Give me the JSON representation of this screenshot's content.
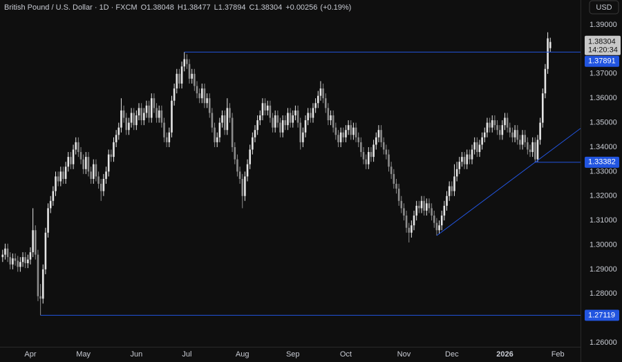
{
  "chart_data": {
    "type": "candlestick",
    "symbol": "British Pound / U.S. Dollar · 1D · FXCM",
    "ohlc_labels": [
      "O",
      "H",
      "L",
      "C"
    ],
    "change": {
      "value": 0.00256,
      "label": "+0.00256"
    },
    "change_percent": {
      "value": 0.19,
      "label": "(+0.19%)"
    },
    "countdown": "14:20:34",
    "currency": "USD",
    "up_color": "#e6e6e6",
    "down_color": "#8c8c8c",
    "line_color": "#2255e0",
    "grid": false,
    "ylim": [
      1.2583,
      1.4002
    ],
    "yticks": [
      {
        "value": 1.26,
        "label": "1.26000"
      },
      {
        "value": 1.27,
        "label": "1.27000"
      },
      {
        "value": 1.28,
        "label": "1.28000"
      },
      {
        "value": 1.29,
        "label": "1.29000"
      },
      {
        "value": 1.3,
        "label": "1.30000"
      },
      {
        "value": 1.31,
        "label": "1.31000"
      },
      {
        "value": 1.32,
        "label": "1.32000"
      },
      {
        "value": 1.33,
        "label": "1.33000"
      },
      {
        "value": 1.34,
        "label": "1.34000"
      },
      {
        "value": 1.35,
        "label": "1.35000"
      },
      {
        "value": 1.36,
        "label": "1.36000"
      },
      {
        "value": 1.37,
        "label": "1.37000"
      },
      {
        "value": 1.38,
        "label": "1.38000"
      },
      {
        "value": 1.39,
        "label": "1.39000"
      }
    ],
    "levels": [
      1.37891,
      1.33382,
      1.27119
    ],
    "trendline": [
      1.3038,
      1.33382
    ],
    "categories": [
      null,
      null,
      null,
      null,
      null,
      null,
      null,
      null,
      null,
      null,
      null,
      "Apr",
      null,
      null,
      null,
      null,
      null,
      null,
      null,
      null,
      null,
      null,
      null,
      null,
      null,
      null,
      null,
      null,
      null,
      null,
      null,
      null,
      "May",
      null,
      null,
      null,
      null,
      null,
      null,
      null,
      null,
      null,
      null,
      null,
      null,
      null,
      null,
      null,
      null,
      null,
      null,
      null,
      null,
      "Jun",
      null,
      null,
      null,
      null,
      null,
      null,
      null,
      null,
      null,
      null,
      null,
      null,
      null,
      null,
      null,
      null,
      null,
      null,
      null,
      "Jul",
      null,
      null,
      null,
      null,
      null,
      null,
      null,
      null,
      null,
      null,
      null,
      null,
      null,
      null,
      null,
      null,
      null,
      null,
      null,
      null,
      null,
      "Aug",
      null,
      null,
      null,
      null,
      null,
      null,
      null,
      null,
      null,
      null,
      null,
      null,
      null,
      null,
      null,
      null,
      null,
      null,
      null,
      "Sep",
      null,
      null,
      null,
      null,
      null,
      null,
      null,
      null,
      null,
      null,
      null,
      null,
      null,
      null,
      null,
      null,
      null,
      null,
      null,
      null,
      "Oct",
      null,
      null,
      null,
      null,
      null,
      null,
      null,
      null,
      null,
      null,
      null,
      null,
      null,
      null,
      null,
      null,
      null,
      null,
      null,
      null,
      null,
      null,
      "Nov",
      null,
      null,
      null,
      null,
      null,
      null,
      null,
      null,
      null,
      null,
      null,
      null,
      null,
      null,
      null,
      null,
      null,
      null,
      "Dec",
      null,
      null,
      null,
      null,
      null,
      null,
      null,
      null,
      null,
      null,
      null,
      null,
      null,
      null,
      null,
      null,
      null,
      null,
      null,
      null,
      "2026",
      null,
      null,
      null,
      null,
      null,
      null,
      null,
      null,
      null,
      null,
      null,
      null,
      null,
      null,
      null,
      null,
      null,
      null,
      null,
      null,
      "Feb"
    ],
    "open": [
      1.295,
      1.296,
      1.2985,
      1.295,
      1.292,
      1.2945,
      1.2935,
      1.291,
      1.293,
      1.295,
      1.2925,
      1.294,
      1.297,
      1.306,
      1.296,
      1.279,
      1.278,
      1.29,
      1.305,
      1.315,
      1.318,
      1.322,
      1.328,
      1.326,
      1.33,
      1.327,
      1.332,
      1.336,
      1.333,
      1.339,
      1.342,
      1.338,
      1.335,
      1.331,
      1.336,
      1.33,
      1.327,
      1.333,
      1.328,
      1.325,
      1.322,
      1.327,
      1.33,
      1.337,
      1.336,
      1.342,
      1.345,
      1.348,
      1.355,
      1.352,
      1.347,
      1.35,
      1.354,
      1.349,
      1.353,
      1.356,
      1.351,
      1.354,
      1.357,
      1.352,
      1.36,
      1.356,
      1.352,
      1.355,
      1.35,
      1.344,
      1.342,
      1.346,
      1.359,
      1.364,
      1.37,
      1.366,
      1.373,
      1.376,
      1.374,
      1.368,
      1.37,
      1.365,
      1.362,
      1.36,
      1.364,
      1.358,
      1.36,
      1.354,
      1.348,
      1.342,
      1.344,
      1.35,
      1.353,
      1.347,
      1.356,
      1.352,
      1.34,
      1.335,
      1.33,
      1.327,
      1.32,
      1.328,
      1.333,
      1.339,
      1.344,
      1.347,
      1.351,
      1.353,
      1.358,
      1.355,
      1.357,
      1.352,
      1.348,
      1.353,
      1.35,
      1.346,
      1.351,
      1.349,
      1.354,
      1.35,
      1.353,
      1.355,
      1.35,
      1.342,
      1.346,
      1.351,
      1.354,
      1.352,
      1.356,
      1.358,
      1.361,
      1.364,
      1.36,
      1.356,
      1.351,
      1.353,
      1.348,
      1.345,
      1.342,
      1.346,
      1.344,
      1.347,
      1.349,
      1.345,
      1.348,
      1.344,
      1.342,
      1.338,
      1.335,
      1.333,
      1.338,
      1.336,
      1.341,
      1.344,
      1.347,
      1.342,
      1.339,
      1.337,
      1.332,
      1.329,
      1.325,
      1.323,
      1.318,
      1.315,
      1.312,
      1.307,
      1.305,
      1.308,
      1.312,
      1.316,
      1.315,
      1.318,
      1.314,
      1.317,
      1.315,
      1.312,
      1.309,
      1.306,
      1.308,
      1.312,
      1.316,
      1.32,
      1.324,
      1.322,
      1.328,
      1.331,
      1.334,
      1.336,
      1.333,
      1.337,
      1.335,
      1.339,
      1.342,
      1.338,
      1.341,
      1.344,
      1.346,
      1.35,
      1.348,
      1.351,
      1.349,
      1.347,
      1.345,
      1.349,
      1.352,
      1.348,
      1.346,
      1.344,
      1.347,
      1.343,
      1.341,
      1.345,
      1.342,
      1.339,
      1.338,
      1.342,
      1.335,
      1.343,
      1.35,
      1.362,
      1.372,
      1.38048,
      null,
      null,
      null
    ],
    "high": [
      1.298,
      1.3005,
      1.3005,
      1.297,
      1.2965,
      1.2965,
      1.2955,
      1.295,
      1.297,
      1.297,
      1.296,
      1.299,
      1.315,
      1.308,
      1.298,
      1.284,
      1.292,
      1.307,
      1.317,
      1.32,
      1.324,
      1.33,
      1.33,
      1.332,
      1.332,
      1.334,
      1.338,
      1.338,
      1.341,
      1.344,
      1.344,
      1.34,
      1.337,
      1.338,
      1.338,
      1.332,
      1.335,
      1.335,
      1.33,
      1.327,
      1.329,
      1.332,
      1.339,
      1.339,
      1.344,
      1.347,
      1.35,
      1.36,
      1.357,
      1.354,
      1.352,
      1.356,
      1.356,
      1.355,
      1.358,
      1.358,
      1.356,
      1.359,
      1.359,
      1.362,
      1.362,
      1.358,
      1.357,
      1.357,
      1.352,
      1.346,
      1.348,
      1.361,
      1.366,
      1.372,
      1.372,
      1.375,
      1.37891,
      1.378,
      1.376,
      1.372,
      1.372,
      1.367,
      1.364,
      1.366,
      1.366,
      1.362,
      1.362,
      1.356,
      1.35,
      1.346,
      1.352,
      1.355,
      1.355,
      1.36,
      1.358,
      1.354,
      1.342,
      1.337,
      1.332,
      1.329,
      1.33,
      1.335,
      1.341,
      1.346,
      1.349,
      1.353,
      1.355,
      1.36,
      1.36,
      1.359,
      1.359,
      1.354,
      1.355,
      1.355,
      1.352,
      1.353,
      1.353,
      1.356,
      1.356,
      1.355,
      1.357,
      1.357,
      1.352,
      1.348,
      1.353,
      1.356,
      1.356,
      1.358,
      1.36,
      1.363,
      1.367,
      1.366,
      1.362,
      1.358,
      1.355,
      1.355,
      1.35,
      1.347,
      1.348,
      1.348,
      1.349,
      1.351,
      1.351,
      1.35,
      1.35,
      1.346,
      1.344,
      1.34,
      1.337,
      1.34,
      1.34,
      1.343,
      1.346,
      1.349,
      1.349,
      1.344,
      1.341,
      1.339,
      1.334,
      1.331,
      1.327,
      1.325,
      1.32,
      1.317,
      1.314,
      1.309,
      1.31,
      1.314,
      1.318,
      1.318,
      1.32,
      1.32,
      1.319,
      1.319,
      1.317,
      1.314,
      1.311,
      1.31,
      1.314,
      1.318,
      1.322,
      1.326,
      1.326,
      1.333,
      1.334,
      1.336,
      1.338,
      1.338,
      1.339,
      1.339,
      1.341,
      1.344,
      1.344,
      1.343,
      1.346,
      1.348,
      1.352,
      1.352,
      1.353,
      1.353,
      1.351,
      1.349,
      1.351,
      1.354,
      1.354,
      1.35,
      1.348,
      1.349,
      1.349,
      1.345,
      1.347,
      1.347,
      1.344,
      1.341,
      1.344,
      1.344,
      1.345,
      1.352,
      1.364,
      1.374,
      1.387,
      1.38477,
      null,
      null,
      null
    ],
    "low": [
      1.293,
      1.294,
      1.293,
      1.29,
      1.29,
      1.2915,
      1.289,
      1.289,
      1.291,
      1.2905,
      1.2905,
      1.292,
      1.295,
      1.294,
      1.277,
      1.27119,
      1.276,
      1.288,
      1.303,
      1.313,
      1.316,
      1.32,
      1.324,
      1.324,
      1.325,
      1.325,
      1.33,
      1.331,
      1.331,
      1.337,
      1.336,
      1.333,
      1.329,
      1.329,
      1.328,
      1.325,
      1.325,
      1.326,
      1.323,
      1.318,
      1.32,
      1.325,
      1.328,
      1.334,
      1.334,
      1.34,
      1.343,
      1.346,
      1.35,
      1.345,
      1.345,
      1.348,
      1.347,
      1.347,
      1.351,
      1.349,
      1.349,
      1.352,
      1.35,
      1.35,
      1.354,
      1.35,
      1.35,
      1.348,
      1.342,
      1.34,
      1.34,
      1.344,
      1.357,
      1.362,
      1.364,
      1.364,
      1.371,
      1.372,
      1.366,
      1.366,
      1.363,
      1.36,
      1.358,
      1.358,
      1.356,
      1.356,
      1.352,
      1.346,
      1.34,
      1.34,
      1.342,
      1.348,
      1.345,
      1.345,
      1.35,
      1.338,
      1.333,
      1.328,
      1.325,
      1.315,
      1.318,
      1.326,
      1.331,
      1.337,
      1.342,
      1.345,
      1.349,
      1.351,
      1.353,
      1.353,
      1.35,
      1.346,
      1.346,
      1.348,
      1.344,
      1.344,
      1.347,
      1.347,
      1.348,
      1.348,
      1.351,
      1.348,
      1.339,
      1.34,
      1.344,
      1.349,
      1.35,
      1.35,
      1.354,
      1.356,
      1.359,
      1.358,
      1.354,
      1.349,
      1.349,
      1.346,
      1.343,
      1.34,
      1.34,
      1.342,
      1.342,
      1.345,
      1.343,
      1.343,
      1.342,
      1.34,
      1.336,
      1.333,
      1.331,
      1.331,
      1.334,
      1.334,
      1.339,
      1.342,
      1.34,
      1.337,
      1.335,
      1.33,
      1.327,
      1.323,
      1.321,
      1.316,
      1.313,
      1.31,
      1.305,
      1.301,
      1.303,
      1.306,
      1.31,
      1.313,
      1.313,
      1.312,
      1.312,
      1.313,
      1.31,
      1.307,
      1.3038,
      1.3045,
      1.306,
      1.31,
      1.314,
      1.318,
      1.32,
      1.32,
      1.326,
      1.329,
      1.332,
      1.331,
      1.331,
      1.333,
      1.333,
      1.337,
      1.336,
      1.336,
      1.339,
      1.342,
      1.344,
      1.346,
      1.346,
      1.347,
      1.345,
      1.343,
      1.343,
      1.347,
      1.346,
      1.344,
      1.342,
      1.342,
      1.341,
      1.339,
      1.339,
      1.34,
      1.337,
      1.336,
      1.336,
      1.33382,
      1.334,
      1.341,
      1.348,
      1.36,
      1.37,
      1.37894,
      null,
      null,
      null
    ],
    "close": [
      1.296,
      1.2985,
      1.295,
      1.292,
      1.2945,
      1.2935,
      1.291,
      1.293,
      1.295,
      1.2925,
      1.294,
      1.297,
      1.306,
      1.296,
      1.279,
      1.278,
      1.29,
      1.305,
      1.315,
      1.318,
      1.322,
      1.328,
      1.326,
      1.33,
      1.327,
      1.332,
      1.336,
      1.333,
      1.339,
      1.342,
      1.338,
      1.335,
      1.331,
      1.336,
      1.33,
      1.327,
      1.333,
      1.328,
      1.325,
      1.322,
      1.327,
      1.33,
      1.337,
      1.336,
      1.342,
      1.345,
      1.348,
      1.355,
      1.352,
      1.347,
      1.35,
      1.354,
      1.349,
      1.353,
      1.356,
      1.351,
      1.354,
      1.357,
      1.352,
      1.36,
      1.356,
      1.352,
      1.355,
      1.35,
      1.344,
      1.342,
      1.346,
      1.359,
      1.364,
      1.37,
      1.366,
      1.373,
      1.376,
      1.374,
      1.368,
      1.37,
      1.365,
      1.362,
      1.36,
      1.364,
      1.358,
      1.36,
      1.354,
      1.348,
      1.342,
      1.344,
      1.35,
      1.353,
      1.347,
      1.356,
      1.352,
      1.34,
      1.335,
      1.33,
      1.327,
      1.32,
      1.328,
      1.333,
      1.339,
      1.344,
      1.347,
      1.351,
      1.353,
      1.358,
      1.355,
      1.357,
      1.352,
      1.348,
      1.353,
      1.35,
      1.346,
      1.351,
      1.349,
      1.354,
      1.35,
      1.353,
      1.355,
      1.35,
      1.342,
      1.346,
      1.351,
      1.354,
      1.352,
      1.356,
      1.358,
      1.361,
      1.364,
      1.36,
      1.356,
      1.351,
      1.353,
      1.348,
      1.345,
      1.342,
      1.346,
      1.344,
      1.347,
      1.349,
      1.345,
      1.348,
      1.344,
      1.342,
      1.338,
      1.335,
      1.333,
      1.338,
      1.336,
      1.341,
      1.344,
      1.347,
      1.342,
      1.339,
      1.337,
      1.332,
      1.329,
      1.325,
      1.323,
      1.318,
      1.315,
      1.312,
      1.307,
      1.305,
      1.308,
      1.312,
      1.316,
      1.315,
      1.318,
      1.314,
      1.317,
      1.315,
      1.312,
      1.309,
      1.306,
      1.308,
      1.312,
      1.316,
      1.32,
      1.324,
      1.322,
      1.328,
      1.331,
      1.334,
      1.336,
      1.333,
      1.337,
      1.335,
      1.339,
      1.342,
      1.338,
      1.341,
      1.344,
      1.346,
      1.35,
      1.348,
      1.351,
      1.349,
      1.347,
      1.345,
      1.349,
      1.352,
      1.348,
      1.346,
      1.344,
      1.347,
      1.343,
      1.341,
      1.345,
      1.342,
      1.339,
      1.338,
      1.342,
      1.335,
      1.343,
      1.35,
      1.362,
      1.372,
      1.3845,
      1.38304,
      null,
      null,
      null
    ]
  }
}
